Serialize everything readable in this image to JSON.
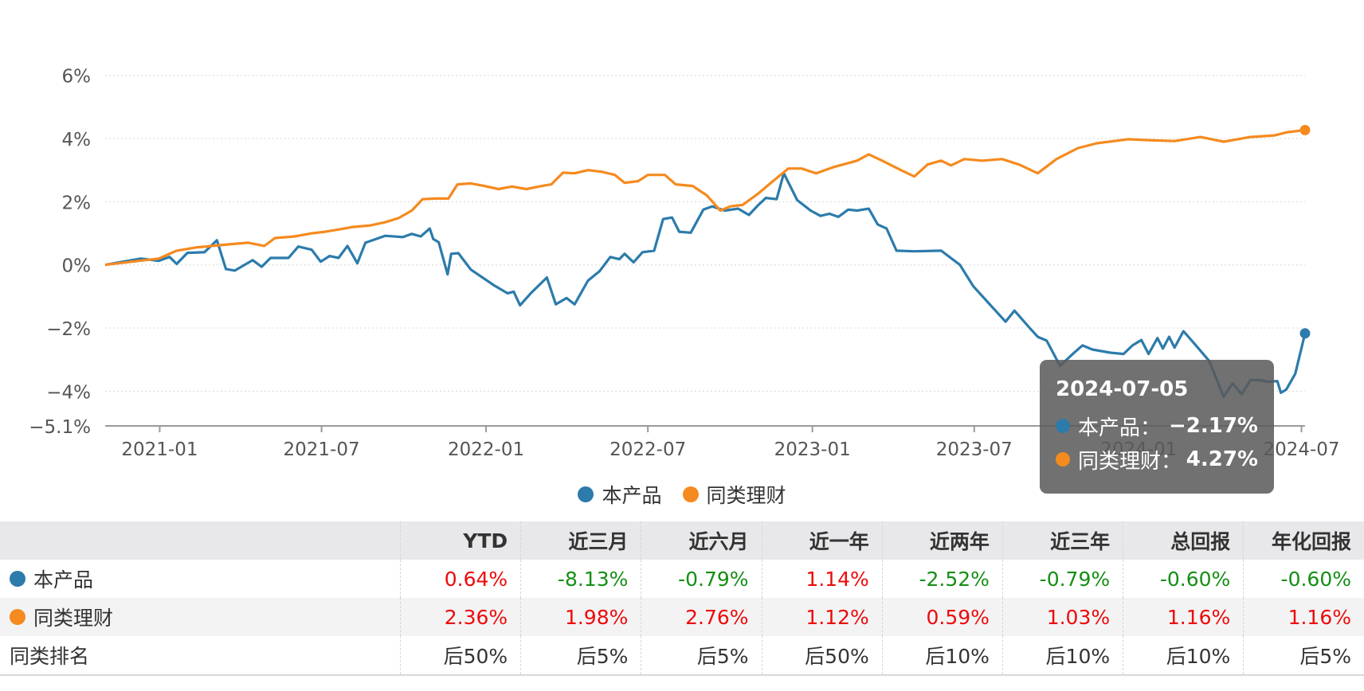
{
  "chart_data": {
    "type": "line",
    "y_ticks": [
      "6%",
      "4%",
      "2%",
      "0%",
      "−2%",
      "−4%",
      "−5.1%"
    ],
    "y_tick_values": [
      6,
      4,
      2,
      0,
      -2,
      -4,
      -5.1
    ],
    "ylim": [
      -5.1,
      6.8
    ],
    "x_ticks": [
      "2021-01",
      "2021-07",
      "2022-01",
      "2022-07",
      "2023-01",
      "2023-07",
      "2024-01",
      "2024-07"
    ],
    "x_tick_dates": [
      "2021-01-01",
      "2021-07-01",
      "2022-01-01",
      "2022-07-01",
      "2023-01-01",
      "2023-07-01",
      "2024-01-01",
      "2024-07-01"
    ],
    "xlim": [
      "2020-11-01",
      "2024-07-05"
    ],
    "grid": true,
    "series": [
      {
        "name": "本产品",
        "color": "#2c7bab",
        "points": [
          [
            "2020-11-01",
            0.0
          ],
          [
            "2020-11-21",
            0.1
          ],
          [
            "2020-12-11",
            0.2
          ],
          [
            "2020-12-31",
            0.13
          ],
          [
            "2021-01-12",
            0.25
          ],
          [
            "2021-01-20",
            0.03
          ],
          [
            "2021-02-01",
            0.38
          ],
          [
            "2021-02-20",
            0.4
          ],
          [
            "2021-03-06",
            0.78
          ],
          [
            "2021-03-16",
            -0.13
          ],
          [
            "2021-03-26",
            -0.18
          ],
          [
            "2021-04-15",
            0.15
          ],
          [
            "2021-04-25",
            -0.06
          ],
          [
            "2021-05-05",
            0.22
          ],
          [
            "2021-05-25",
            0.22
          ],
          [
            "2021-06-05",
            0.58
          ],
          [
            "2021-06-20",
            0.48
          ],
          [
            "2021-06-30",
            0.1
          ],
          [
            "2021-07-10",
            0.28
          ],
          [
            "2021-07-20",
            0.22
          ],
          [
            "2021-07-30",
            0.6
          ],
          [
            "2021-08-10",
            0.05
          ],
          [
            "2021-08-19",
            0.7
          ],
          [
            "2021-08-29",
            0.8
          ],
          [
            "2021-09-10",
            0.92
          ],
          [
            "2021-09-30",
            0.88
          ],
          [
            "2021-10-10",
            0.98
          ],
          [
            "2021-10-20",
            0.9
          ],
          [
            "2021-10-30",
            1.15
          ],
          [
            "2021-11-03",
            0.82
          ],
          [
            "2021-11-09",
            0.72
          ],
          [
            "2021-11-19",
            -0.3
          ],
          [
            "2021-11-23",
            0.35
          ],
          [
            "2021-12-01",
            0.37
          ],
          [
            "2021-12-15",
            -0.15
          ],
          [
            "2022-01-10",
            -0.65
          ],
          [
            "2022-01-25",
            -0.9
          ],
          [
            "2022-02-01",
            -0.85
          ],
          [
            "2022-02-08",
            -1.28
          ],
          [
            "2022-02-20",
            -0.9
          ],
          [
            "2022-03-10",
            -0.4
          ],
          [
            "2022-03-20",
            -1.25
          ],
          [
            "2022-04-01",
            -1.05
          ],
          [
            "2022-04-10",
            -1.25
          ],
          [
            "2022-04-25",
            -0.5
          ],
          [
            "2022-05-08",
            -0.2
          ],
          [
            "2022-05-20",
            0.25
          ],
          [
            "2022-05-30",
            0.18
          ],
          [
            "2022-06-05",
            0.35
          ],
          [
            "2022-06-15",
            0.08
          ],
          [
            "2022-06-25",
            0.4
          ],
          [
            "2022-07-08",
            0.45
          ],
          [
            "2022-07-18",
            1.45
          ],
          [
            "2022-07-28",
            1.5
          ],
          [
            "2022-08-05",
            1.05
          ],
          [
            "2022-08-18",
            1.02
          ],
          [
            "2022-09-01",
            1.75
          ],
          [
            "2022-09-11",
            1.85
          ],
          [
            "2022-09-25",
            1.72
          ],
          [
            "2022-10-10",
            1.78
          ],
          [
            "2022-10-22",
            1.58
          ],
          [
            "2022-11-01",
            1.88
          ],
          [
            "2022-11-10",
            2.12
          ],
          [
            "2022-11-22",
            2.08
          ],
          [
            "2022-11-30",
            2.9
          ],
          [
            "2022-12-15",
            2.05
          ],
          [
            "2022-12-30",
            1.72
          ],
          [
            "2023-01-10",
            1.55
          ],
          [
            "2023-01-20",
            1.62
          ],
          [
            "2023-01-30",
            1.52
          ],
          [
            "2023-02-10",
            1.75
          ],
          [
            "2023-02-20",
            1.72
          ],
          [
            "2023-03-05",
            1.78
          ],
          [
            "2023-03-15",
            1.28
          ],
          [
            "2023-03-25",
            1.15
          ],
          [
            "2023-04-05",
            0.45
          ],
          [
            "2023-04-25",
            0.43
          ],
          [
            "2023-05-25",
            0.45
          ],
          [
            "2023-06-15",
            0.0
          ],
          [
            "2023-06-30",
            -0.68
          ],
          [
            "2023-07-20",
            -1.3
          ],
          [
            "2023-08-05",
            -1.8
          ],
          [
            "2023-08-15",
            -1.45
          ],
          [
            "2023-09-01",
            -2.0
          ],
          [
            "2023-09-10",
            -2.28
          ],
          [
            "2023-09-20",
            -2.4
          ],
          [
            "2023-10-05",
            -3.2
          ],
          [
            "2023-10-20",
            -2.8
          ],
          [
            "2023-10-30",
            -2.55
          ],
          [
            "2023-11-10",
            -2.68
          ],
          [
            "2023-11-30",
            -2.78
          ],
          [
            "2023-12-15",
            -2.82
          ],
          [
            "2023-12-25",
            -2.55
          ],
          [
            "2024-01-04",
            -2.38
          ],
          [
            "2024-01-12",
            -2.82
          ],
          [
            "2024-01-22",
            -2.32
          ],
          [
            "2024-01-28",
            -2.65
          ],
          [
            "2024-02-04",
            -2.28
          ],
          [
            "2024-02-10",
            -2.62
          ],
          [
            "2024-02-20",
            -2.1
          ],
          [
            "2024-03-05",
            -2.55
          ],
          [
            "2024-03-20",
            -3.05
          ],
          [
            "2024-04-05",
            -4.18
          ],
          [
            "2024-04-15",
            -3.75
          ],
          [
            "2024-04-25",
            -4.1
          ],
          [
            "2024-05-05",
            -3.65
          ],
          [
            "2024-05-15",
            -3.65
          ],
          [
            "2024-05-25",
            -3.7
          ],
          [
            "2024-06-04",
            -3.68
          ],
          [
            "2024-06-08",
            -4.05
          ],
          [
            "2024-06-14",
            -3.95
          ],
          [
            "2024-06-24",
            -3.45
          ],
          [
            "2024-07-05",
            -2.17
          ]
        ]
      },
      {
        "name": "同类理财",
        "color": "#f58a1f",
        "points": [
          [
            "2020-11-01",
            0.0
          ],
          [
            "2020-12-01",
            0.1
          ],
          [
            "2020-12-31",
            0.2
          ],
          [
            "2021-01-20",
            0.45
          ],
          [
            "2021-02-10",
            0.55
          ],
          [
            "2021-03-01",
            0.6
          ],
          [
            "2021-03-20",
            0.65
          ],
          [
            "2021-04-10",
            0.7
          ],
          [
            "2021-04-28",
            0.6
          ],
          [
            "2021-05-10",
            0.85
          ],
          [
            "2021-06-01",
            0.9
          ],
          [
            "2021-06-20",
            1.0
          ],
          [
            "2021-07-05",
            1.05
          ],
          [
            "2021-07-20",
            1.12
          ],
          [
            "2021-08-05",
            1.2
          ],
          [
            "2021-08-25",
            1.25
          ],
          [
            "2021-09-10",
            1.35
          ],
          [
            "2021-09-25",
            1.48
          ],
          [
            "2021-10-10",
            1.72
          ],
          [
            "2021-10-22",
            2.08
          ],
          [
            "2021-11-05",
            2.1
          ],
          [
            "2021-11-20",
            2.1
          ],
          [
            "2021-11-30",
            2.55
          ],
          [
            "2021-12-15",
            2.58
          ],
          [
            "2021-12-30",
            2.5
          ],
          [
            "2022-01-15",
            2.4
          ],
          [
            "2022-01-30",
            2.48
          ],
          [
            "2022-02-15",
            2.4
          ],
          [
            "2022-03-01",
            2.48
          ],
          [
            "2022-03-15",
            2.55
          ],
          [
            "2022-03-28",
            2.92
          ],
          [
            "2022-04-10",
            2.9
          ],
          [
            "2022-04-25",
            3.0
          ],
          [
            "2022-05-10",
            2.95
          ],
          [
            "2022-05-25",
            2.85
          ],
          [
            "2022-06-05",
            2.6
          ],
          [
            "2022-06-20",
            2.65
          ],
          [
            "2022-07-01",
            2.85
          ],
          [
            "2022-07-20",
            2.85
          ],
          [
            "2022-08-01",
            2.55
          ],
          [
            "2022-08-20",
            2.5
          ],
          [
            "2022-09-05",
            2.2
          ],
          [
            "2022-09-20",
            1.72
          ],
          [
            "2022-10-01",
            1.85
          ],
          [
            "2022-10-15",
            1.9
          ],
          [
            "2022-11-01",
            2.25
          ],
          [
            "2022-11-20",
            2.7
          ],
          [
            "2022-12-05",
            3.05
          ],
          [
            "2022-12-20",
            3.05
          ],
          [
            "2023-01-05",
            2.9
          ],
          [
            "2023-01-25",
            3.1
          ],
          [
            "2023-02-20",
            3.3
          ],
          [
            "2023-03-05",
            3.5
          ],
          [
            "2023-03-20",
            3.3
          ],
          [
            "2023-04-10",
            3.0
          ],
          [
            "2023-04-25",
            2.8
          ],
          [
            "2023-05-10",
            3.18
          ],
          [
            "2023-05-25",
            3.3
          ],
          [
            "2023-06-05",
            3.15
          ],
          [
            "2023-06-20",
            3.35
          ],
          [
            "2023-07-10",
            3.3
          ],
          [
            "2023-08-01",
            3.35
          ],
          [
            "2023-08-20",
            3.18
          ],
          [
            "2023-09-10",
            2.9
          ],
          [
            "2023-10-01",
            3.35
          ],
          [
            "2023-10-25",
            3.7
          ],
          [
            "2023-11-15",
            3.85
          ],
          [
            "2023-12-20",
            3.98
          ],
          [
            "2024-01-10",
            3.95
          ],
          [
            "2024-02-10",
            3.92
          ],
          [
            "2024-03-10",
            4.05
          ],
          [
            "2024-04-05",
            3.9
          ],
          [
            "2024-05-05",
            4.05
          ],
          [
            "2024-06-01",
            4.1
          ],
          [
            "2024-06-15",
            4.2
          ],
          [
            "2024-07-05",
            4.27
          ]
        ]
      }
    ],
    "tooltip": {
      "date": "2024-07-05",
      "rows": [
        {
          "label": "本产品：",
          "value": "−2.17%"
        },
        {
          "label": "同类理财：",
          "value": "4.27%"
        }
      ]
    }
  },
  "legend": [
    {
      "name": "本产品",
      "color": "#2c7bab"
    },
    {
      "name": "同类理财",
      "color": "#f58a1f"
    }
  ],
  "table": {
    "headers": [
      "",
      "YTD",
      "近三月",
      "近六月",
      "近一年",
      "近两年",
      "近三年",
      "总回报",
      "年化回报"
    ],
    "rows": [
      {
        "name": "本产品",
        "color": "#2c7bab",
        "cells": [
          {
            "v": "0.64%",
            "c": "pos"
          },
          {
            "v": "-8.13%",
            "c": "neg"
          },
          {
            "v": "-0.79%",
            "c": "neg"
          },
          {
            "v": "1.14%",
            "c": "pos"
          },
          {
            "v": "-2.52%",
            "c": "neg"
          },
          {
            "v": "-0.79%",
            "c": "neg"
          },
          {
            "v": "-0.60%",
            "c": "neg"
          },
          {
            "v": "-0.60%",
            "c": "neg"
          }
        ]
      },
      {
        "name": "同类理财",
        "color": "#f58a1f",
        "cells": [
          {
            "v": "2.36%",
            "c": "pos"
          },
          {
            "v": "1.98%",
            "c": "pos"
          },
          {
            "v": "2.76%",
            "c": "pos"
          },
          {
            "v": "1.12%",
            "c": "pos"
          },
          {
            "v": "0.59%",
            "c": "pos"
          },
          {
            "v": "1.03%",
            "c": "pos"
          },
          {
            "v": "1.16%",
            "c": "pos"
          },
          {
            "v": "1.16%",
            "c": "pos"
          }
        ]
      },
      {
        "name": "同类排名",
        "color": "",
        "cells": [
          {
            "v": "后50%",
            "c": "neu"
          },
          {
            "v": "后5%",
            "c": "neu"
          },
          {
            "v": "后5%",
            "c": "neu"
          },
          {
            "v": "后50%",
            "c": "neu"
          },
          {
            "v": "后10%",
            "c": "neu"
          },
          {
            "v": "后10%",
            "c": "neu"
          },
          {
            "v": "后10%",
            "c": "neu"
          },
          {
            "v": "后5%",
            "c": "neu"
          }
        ]
      }
    ]
  }
}
